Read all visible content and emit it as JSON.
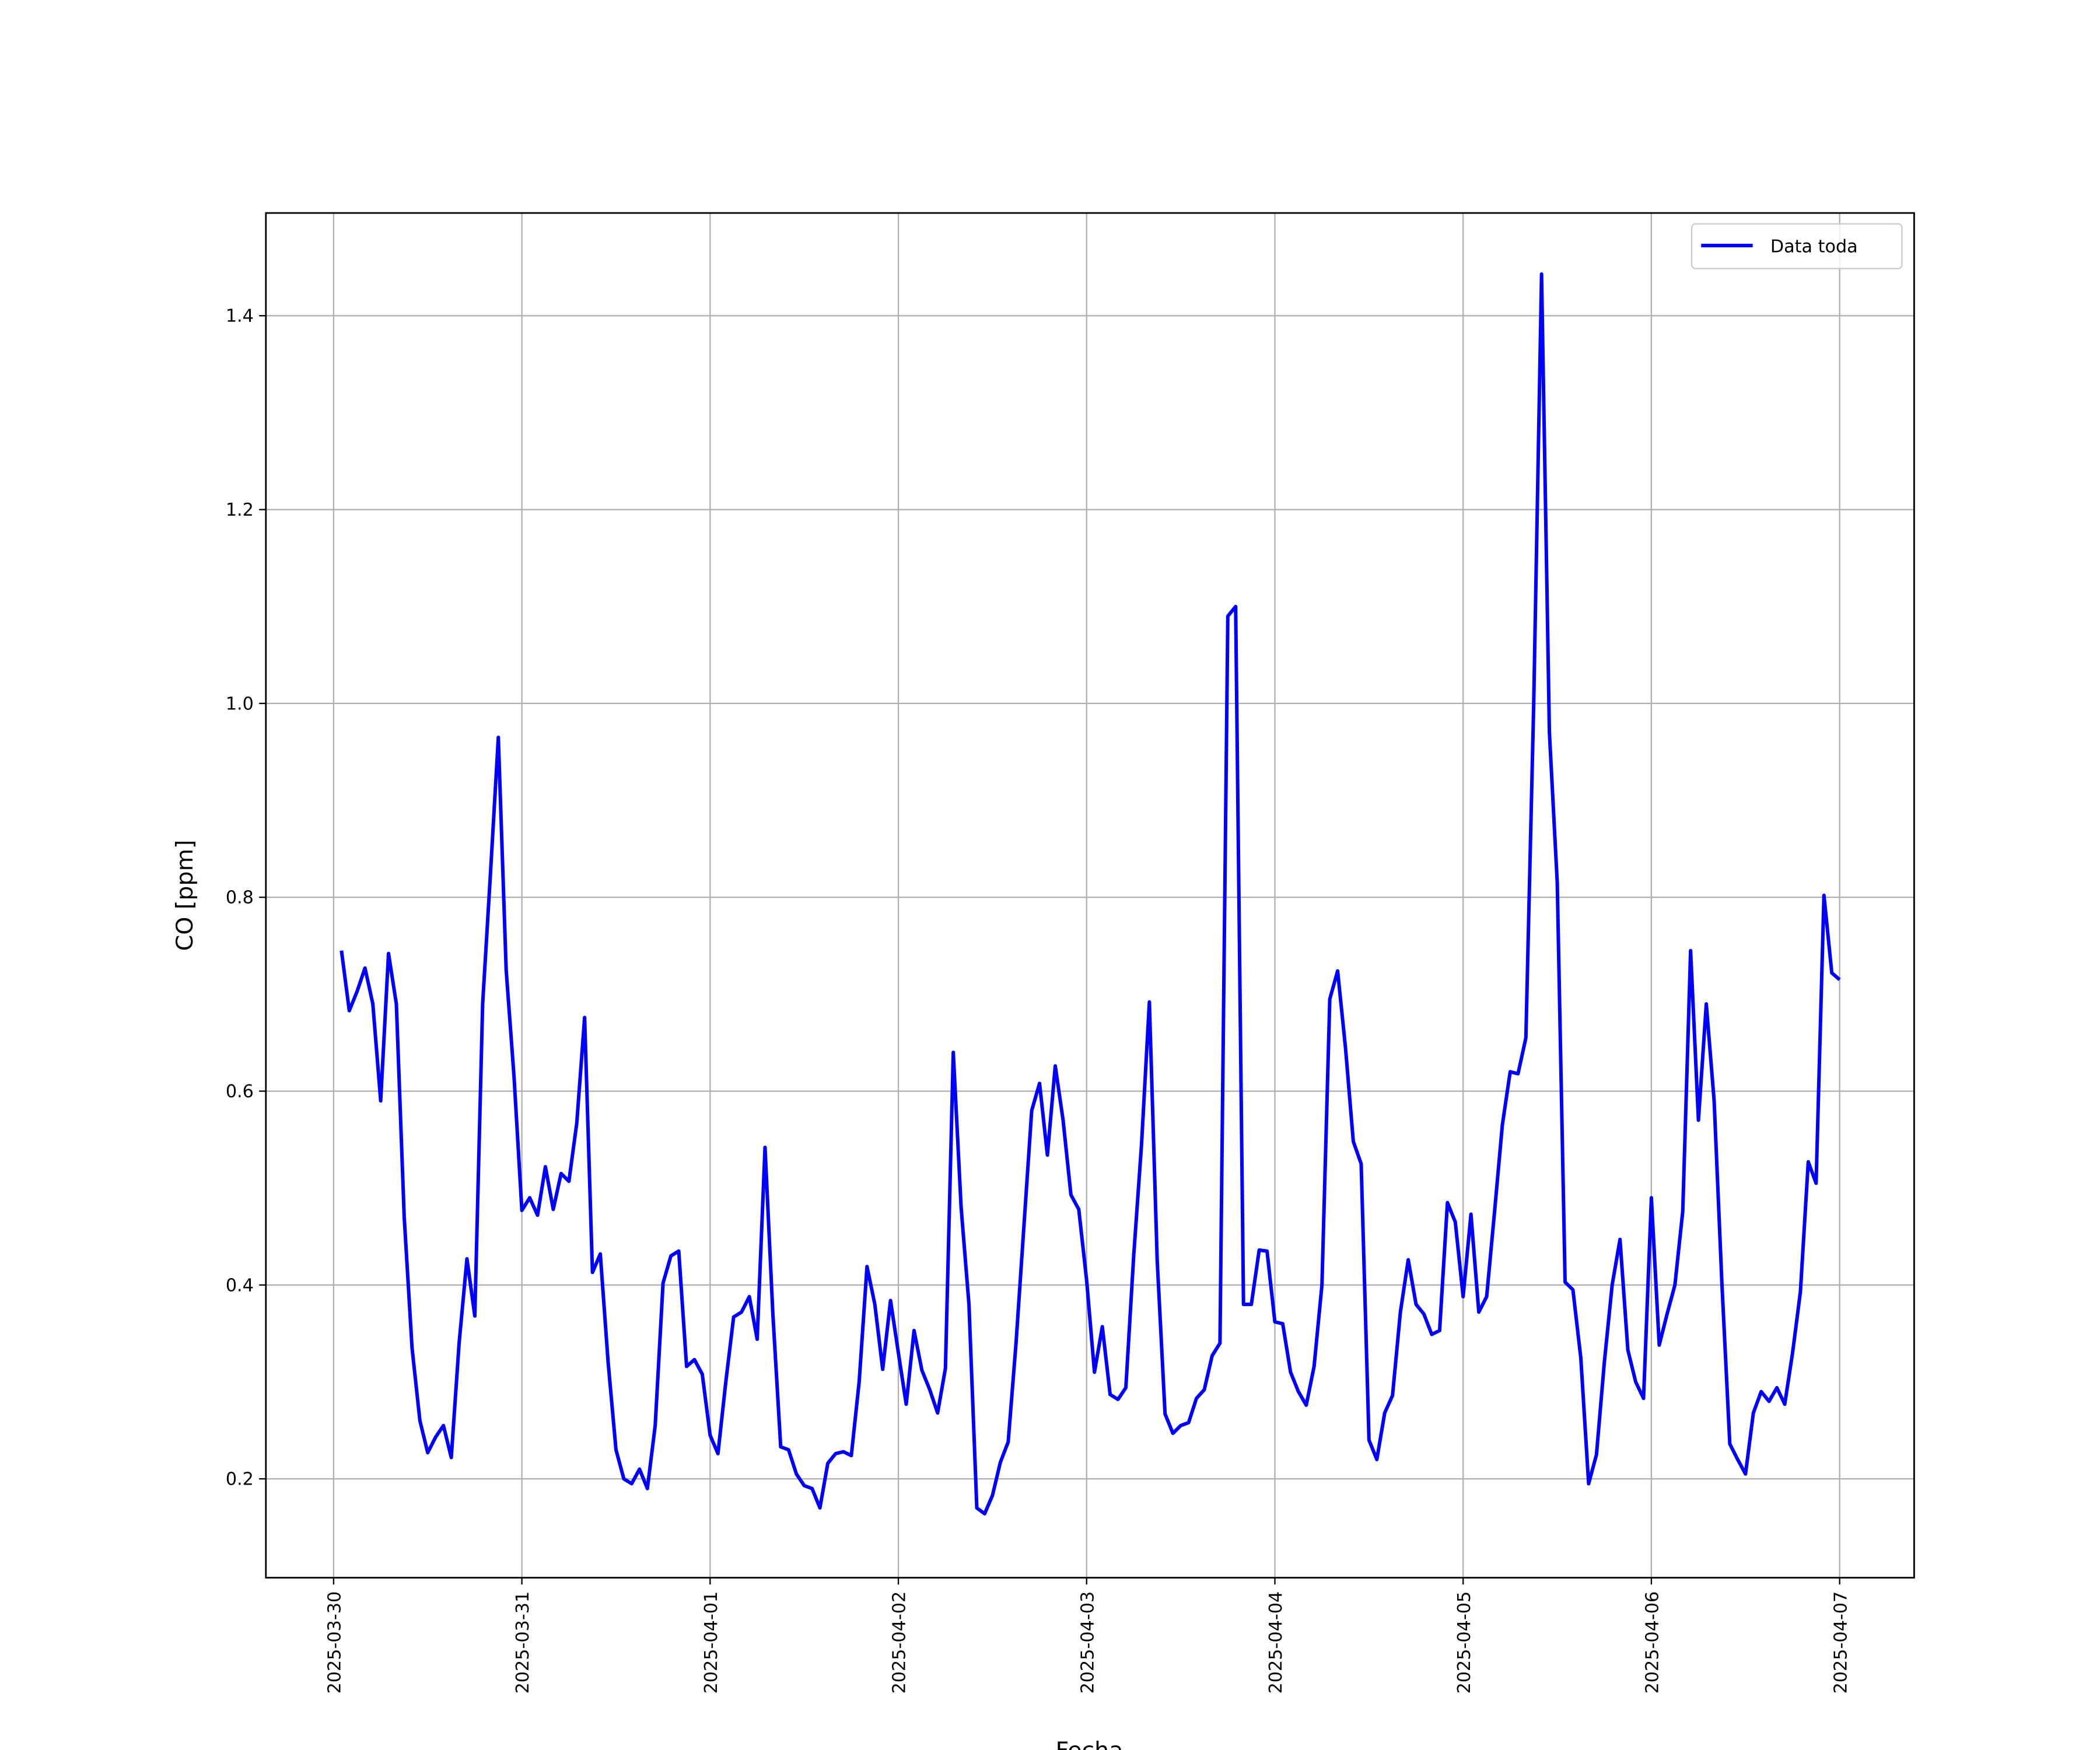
{
  "chart_data": {
    "type": "line",
    "x_label": "Fecha",
    "y_label": "CO [ppm]",
    "x": [
      "2025-03-30 01:00",
      "2025-03-30 02:00",
      "2025-03-30 03:00",
      "2025-03-30 04:00",
      "2025-03-30 05:00",
      "2025-03-30 06:00",
      "2025-03-30 07:00",
      "2025-03-30 08:00",
      "2025-03-30 09:00",
      "2025-03-30 10:00",
      "2025-03-30 11:00",
      "2025-03-30 12:00",
      "2025-03-30 13:00",
      "2025-03-30 14:00",
      "2025-03-30 15:00",
      "2025-03-30 16:00",
      "2025-03-30 17:00",
      "2025-03-30 18:00",
      "2025-03-30 19:00",
      "2025-03-30 20:00",
      "2025-03-30 21:00",
      "2025-03-30 22:00",
      "2025-03-30 23:00",
      "2025-03-31 00:00",
      "2025-03-31 01:00",
      "2025-03-31 02:00",
      "2025-03-31 03:00",
      "2025-03-31 04:00",
      "2025-03-31 05:00",
      "2025-03-31 06:00",
      "2025-03-31 07:00",
      "2025-03-31 08:00",
      "2025-03-31 09:00",
      "2025-03-31 10:00",
      "2025-03-31 11:00",
      "2025-03-31 12:00",
      "2025-03-31 13:00",
      "2025-03-31 14:00",
      "2025-03-31 15:00",
      "2025-03-31 16:00",
      "2025-03-31 17:00",
      "2025-03-31 18:00",
      "2025-03-31 19:00",
      "2025-03-31 20:00",
      "2025-03-31 21:00",
      "2025-03-31 22:00",
      "2025-03-31 23:00",
      "2025-04-01 00:00",
      "2025-04-01 01:00",
      "2025-04-01 02:00",
      "2025-04-01 03:00",
      "2025-04-01 04:00",
      "2025-04-01 05:00",
      "2025-04-01 06:00",
      "2025-04-01 07:00",
      "2025-04-01 08:00",
      "2025-04-01 09:00",
      "2025-04-01 10:00",
      "2025-04-01 11:00",
      "2025-04-01 12:00",
      "2025-04-01 13:00",
      "2025-04-01 14:00",
      "2025-04-01 15:00",
      "2025-04-01 16:00",
      "2025-04-01 17:00",
      "2025-04-01 18:00",
      "2025-04-01 19:00",
      "2025-04-01 20:00",
      "2025-04-01 21:00",
      "2025-04-01 22:00",
      "2025-04-01 23:00",
      "2025-04-02 00:00",
      "2025-04-02 01:00",
      "2025-04-02 02:00",
      "2025-04-02 03:00",
      "2025-04-02 04:00",
      "2025-04-02 05:00",
      "2025-04-02 06:00",
      "2025-04-02 07:00",
      "2025-04-02 08:00",
      "2025-04-02 09:00",
      "2025-04-02 10:00",
      "2025-04-02 11:00",
      "2025-04-02 12:00",
      "2025-04-02 13:00",
      "2025-04-02 14:00",
      "2025-04-02 15:00",
      "2025-04-02 16:00",
      "2025-04-02 17:00",
      "2025-04-02 18:00",
      "2025-04-02 19:00",
      "2025-04-02 20:00",
      "2025-04-02 21:00",
      "2025-04-02 22:00",
      "2025-04-02 23:00",
      "2025-04-03 00:00",
      "2025-04-03 01:00",
      "2025-04-03 02:00",
      "2025-04-03 03:00",
      "2025-04-03 04:00",
      "2025-04-03 05:00",
      "2025-04-03 06:00",
      "2025-04-03 07:00",
      "2025-04-03 08:00",
      "2025-04-03 09:00",
      "2025-04-03 10:00",
      "2025-04-03 11:00",
      "2025-04-03 12:00",
      "2025-04-03 13:00",
      "2025-04-03 14:00",
      "2025-04-03 15:00",
      "2025-04-03 16:00",
      "2025-04-03 17:00",
      "2025-04-03 18:00",
      "2025-04-03 19:00",
      "2025-04-03 20:00",
      "2025-04-03 21:00",
      "2025-04-03 22:00",
      "2025-04-03 23:00",
      "2025-04-04 00:00",
      "2025-04-04 01:00",
      "2025-04-04 02:00",
      "2025-04-04 03:00",
      "2025-04-04 04:00",
      "2025-04-04 05:00",
      "2025-04-04 06:00",
      "2025-04-04 07:00",
      "2025-04-04 08:00",
      "2025-04-04 09:00",
      "2025-04-04 10:00",
      "2025-04-04 11:00",
      "2025-04-04 12:00",
      "2025-04-04 13:00",
      "2025-04-04 14:00",
      "2025-04-04 15:00",
      "2025-04-04 16:00",
      "2025-04-04 17:00",
      "2025-04-04 18:00",
      "2025-04-04 19:00",
      "2025-04-04 20:00",
      "2025-04-04 21:00",
      "2025-04-04 22:00",
      "2025-04-04 23:00",
      "2025-04-05 00:00",
      "2025-04-05 01:00",
      "2025-04-05 02:00",
      "2025-04-05 03:00",
      "2025-04-05 04:00",
      "2025-04-05 05:00",
      "2025-04-05 06:00",
      "2025-04-05 07:00",
      "2025-04-05 08:00",
      "2025-04-05 09:00",
      "2025-04-05 10:00",
      "2025-04-05 11:00",
      "2025-04-05 12:00",
      "2025-04-05 13:00",
      "2025-04-05 14:00",
      "2025-04-05 15:00",
      "2025-04-05 16:00",
      "2025-04-05 17:00",
      "2025-04-05 18:00",
      "2025-04-05 19:00",
      "2025-04-05 20:00",
      "2025-04-05 21:00",
      "2025-04-05 22:00",
      "2025-04-05 23:00",
      "2025-04-06 00:00",
      "2025-04-06 01:00",
      "2025-04-06 02:00",
      "2025-04-06 03:00",
      "2025-04-06 04:00",
      "2025-04-06 05:00",
      "2025-04-06 06:00",
      "2025-04-06 07:00",
      "2025-04-06 08:00",
      "2025-04-06 09:00",
      "2025-04-06 10:00",
      "2025-04-06 11:00",
      "2025-04-06 12:00",
      "2025-04-06 13:00",
      "2025-04-06 14:00",
      "2025-04-06 15:00",
      "2025-04-06 16:00",
      "2025-04-06 17:00",
      "2025-04-06 18:00",
      "2025-04-06 19:00",
      "2025-04-06 20:00",
      "2025-04-06 21:00",
      "2025-04-06 22:00",
      "2025-04-06 23:00",
      "2025-04-07 00:00"
    ],
    "series": [
      {
        "name": "Data toda",
        "color": "#0000ff",
        "values": [
          0.745,
          0.683,
          0.703,
          0.727,
          0.69,
          0.59,
          0.742,
          0.69,
          0.47,
          0.335,
          0.26,
          0.227,
          0.243,
          0.255,
          0.222,
          0.34,
          0.427,
          0.368,
          0.69,
          0.825,
          0.965,
          0.725,
          0.615,
          0.477,
          0.49,
          0.472,
          0.522,
          0.478,
          0.515,
          0.507,
          0.567,
          0.676,
          0.413,
          0.432,
          0.32,
          0.23,
          0.2,
          0.195,
          0.21,
          0.19,
          0.255,
          0.402,
          0.43,
          0.435,
          0.316,
          0.323,
          0.308,
          0.245,
          0.226,
          0.3,
          0.367,
          0.372,
          0.388,
          0.344,
          0.542,
          0.37,
          0.233,
          0.23,
          0.205,
          0.193,
          0.19,
          0.17,
          0.216,
          0.226,
          0.228,
          0.224,
          0.3,
          0.419,
          0.38,
          0.313,
          0.384,
          0.33,
          0.277,
          0.353,
          0.312,
          0.292,
          0.268,
          0.314,
          0.64,
          0.48,
          0.38,
          0.17,
          0.164,
          0.183,
          0.217,
          0.238,
          0.34,
          0.46,
          0.58,
          0.608,
          0.534,
          0.626,
          0.57,
          0.493,
          0.478,
          0.405,
          0.31,
          0.357,
          0.287,
          0.282,
          0.294,
          0.43,
          0.545,
          0.692,
          0.425,
          0.267,
          0.247,
          0.255,
          0.258,
          0.283,
          0.292,
          0.327,
          0.34,
          1.09,
          1.1,
          0.38,
          0.38,
          0.436,
          0.435,
          0.362,
          0.36,
          0.31,
          0.29,
          0.276,
          0.316,
          0.4,
          0.695,
          0.724,
          0.645,
          0.548,
          0.525,
          0.24,
          0.22,
          0.268,
          0.286,
          0.372,
          0.426,
          0.38,
          0.37,
          0.349,
          0.353,
          0.485,
          0.465,
          0.388,
          0.473,
          0.372,
          0.388,
          0.475,
          0.565,
          0.62,
          0.618,
          0.655,
          1.0,
          1.443,
          0.97,
          0.815,
          0.403,
          0.395,
          0.325,
          0.195,
          0.225,
          0.32,
          0.4,
          0.447,
          0.333,
          0.3,
          0.283,
          0.49,
          0.338,
          0.37,
          0.4,
          0.476,
          0.745,
          0.57,
          0.69,
          0.59,
          0.4,
          0.236,
          0.22,
          0.205,
          0.268,
          0.29,
          0.28,
          0.294,
          0.277,
          0.33,
          0.393,
          0.527,
          0.505,
          0.802,
          0.722,
          0.715
        ]
      }
    ],
    "xlim": [
      "2025-03-29 15:22",
      "2025-04-07 09:30"
    ],
    "xticks": [
      "2025-03-30",
      "2025-03-31",
      "2025-04-01",
      "2025-04-02",
      "2025-04-03",
      "2025-04-04",
      "2025-04-05",
      "2025-04-06",
      "2025-04-07"
    ],
    "ylim": [
      0.098,
      1.506
    ],
    "yticks": [
      0.2,
      0.4,
      0.6,
      0.8,
      {
        "value": 1,
        "label": "1.0"
      },
      1.2,
      1.4
    ],
    "grid": true,
    "legend": "upper right"
  }
}
